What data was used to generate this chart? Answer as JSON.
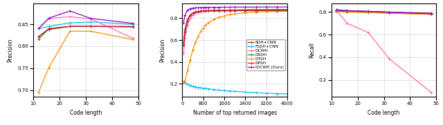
{
  "plot1": {
    "xlabel": "Code length",
    "ylabel": "Precision",
    "xlim": [
      10,
      50
    ],
    "ylim": [
      0.685,
      0.897
    ],
    "xticks": [
      10,
      20,
      30,
      40,
      50
    ],
    "yticks": [
      0.7,
      0.75,
      0.8,
      0.85
    ],
    "x": [
      12,
      16,
      24,
      32,
      48
    ],
    "series": [
      {
        "label": "SDH+CNN",
        "color": "#8B4513",
        "y": [
          0.822,
          0.838,
          0.845,
          0.845,
          0.845
        ]
      },
      {
        "label": "FSDH+CNN",
        "color": "#00BFFF",
        "y": [
          0.84,
          0.845,
          0.853,
          0.855,
          0.85
        ]
      },
      {
        "label": "DCWH",
        "color": "#FF69B4",
        "y": [
          0.84,
          0.863,
          0.867,
          0.862,
          0.818
        ]
      },
      {
        "label": "DSDH",
        "color": "#228B22",
        "y": [
          0.816,
          0.84,
          0.845,
          0.845,
          0.844
        ]
      },
      {
        "label": "DTSH",
        "color": "#FF8C00",
        "y": [
          0.695,
          0.752,
          0.834,
          0.834,
          0.815
        ]
      },
      {
        "label": "DPSH",
        "color": "#DC143C",
        "y": [
          0.822,
          0.84,
          0.845,
          0.845,
          0.844
        ]
      },
      {
        "label": "IDCWH (Ours)",
        "color": "#9400D3",
        "y": [
          0.84,
          0.864,
          0.88,
          0.863,
          0.852
        ]
      }
    ]
  },
  "plot2": {
    "xlabel": "Number of top returned images",
    "ylabel": "Precision",
    "xlim": [
      0,
      4000
    ],
    "ylim": [
      0.08,
      0.935
    ],
    "xticks": [
      0,
      800,
      1600,
      2400,
      3200,
      4000
    ],
    "yticks": [
      0.2,
      0.4,
      0.6,
      0.8
    ],
    "x": [
      50,
      100,
      200,
      300,
      400,
      500,
      600,
      700,
      800,
      900,
      1000,
      1200,
      1400,
      1600,
      1800,
      2000,
      2400,
      2800,
      3200,
      3600,
      4000
    ],
    "series": [
      {
        "label": "SDH+CNN",
        "color": "#8B4513",
        "y": [
          0.58,
          0.7,
          0.79,
          0.83,
          0.85,
          0.858,
          0.862,
          0.863,
          0.864,
          0.865,
          0.865,
          0.866,
          0.867,
          0.867,
          0.868,
          0.868,
          0.869,
          0.869,
          0.87,
          0.87,
          0.87
        ]
      },
      {
        "label": "FSDH+CNN",
        "color": "#00BFFF",
        "y": [
          0.22,
          0.21,
          0.195,
          0.185,
          0.178,
          0.172,
          0.167,
          0.163,
          0.16,
          0.156,
          0.153,
          0.148,
          0.143,
          0.138,
          0.134,
          0.131,
          0.124,
          0.118,
          0.113,
          0.11,
          0.107
        ]
      },
      {
        "label": "DCWH",
        "color": "#FF69B4",
        "y": [
          0.48,
          0.62,
          0.74,
          0.8,
          0.83,
          0.848,
          0.856,
          0.86,
          0.864,
          0.866,
          0.868,
          0.87,
          0.872,
          0.873,
          0.874,
          0.875,
          0.876,
          0.877,
          0.877,
          0.878,
          0.878
        ]
      },
      {
        "label": "DSDH",
        "color": "#228B22",
        "y": [
          0.56,
          0.68,
          0.78,
          0.83,
          0.848,
          0.857,
          0.862,
          0.865,
          0.867,
          0.869,
          0.87,
          0.872,
          0.873,
          0.874,
          0.875,
          0.875,
          0.876,
          0.877,
          0.877,
          0.878,
          0.878
        ]
      },
      {
        "label": "DTSH",
        "color": "#FF8C00",
        "y": [
          0.21,
          0.23,
          0.32,
          0.42,
          0.51,
          0.58,
          0.63,
          0.68,
          0.71,
          0.74,
          0.76,
          0.79,
          0.81,
          0.82,
          0.835,
          0.84,
          0.85,
          0.856,
          0.86,
          0.862,
          0.864
        ]
      },
      {
        "label": "DPSH",
        "color": "#DC143C",
        "y": [
          0.55,
          0.67,
          0.78,
          0.825,
          0.847,
          0.857,
          0.862,
          0.866,
          0.868,
          0.869,
          0.87,
          0.872,
          0.873,
          0.874,
          0.875,
          0.875,
          0.876,
          0.877,
          0.877,
          0.878,
          0.878
        ]
      },
      {
        "label": "IDCWH (Ours)",
        "color": "#9400D3",
        "y": [
          0.76,
          0.83,
          0.875,
          0.888,
          0.893,
          0.895,
          0.896,
          0.897,
          0.898,
          0.899,
          0.899,
          0.9,
          0.9,
          0.901,
          0.901,
          0.902,
          0.902,
          0.902,
          0.903,
          0.903,
          0.903
        ]
      }
    ]
  },
  "plot3": {
    "xlabel": "Code length",
    "ylabel": "Recall",
    "xlim": [
      10,
      50
    ],
    "ylim": [
      0.05,
      0.875
    ],
    "xticks": [
      10,
      20,
      30,
      40,
      50
    ],
    "yticks": [
      0.2,
      0.4,
      0.6,
      0.8
    ],
    "x": [
      12,
      16,
      24,
      32,
      48
    ],
    "series": [
      {
        "label": "SDH+CNN",
        "color": "#8B4513",
        "y": [
          0.812,
          0.808,
          0.803,
          0.796,
          0.787
        ]
      },
      {
        "label": "FSDH+CNN",
        "color": "#00BFFF",
        "y": [
          0.81,
          0.805,
          0.799,
          0.793,
          0.783
        ]
      },
      {
        "label": "DCWH",
        "color": "#FF69B4",
        "y": [
          0.812,
          0.7,
          0.62,
          0.388,
          0.09
        ]
      },
      {
        "label": "DSDH",
        "color": "#228B22",
        "y": [
          0.807,
          0.802,
          0.797,
          0.791,
          0.781
        ]
      },
      {
        "label": "DTSH",
        "color": "#FF8C00",
        "y": [
          0.803,
          0.799,
          0.795,
          0.789,
          0.779
        ]
      },
      {
        "label": "DPSH",
        "color": "#DC143C",
        "y": [
          0.82,
          0.812,
          0.806,
          0.799,
          0.789
        ]
      },
      {
        "label": "IDCWH (Ours)",
        "color": "#9400D3",
        "y": [
          0.82,
          0.812,
          0.806,
          0.799,
          0.783
        ]
      }
    ]
  },
  "legend": {
    "labels": [
      "SDH+CNN",
      "FSDH+CNN",
      "DCWH",
      "DSDH",
      "DTSH",
      "DPSH",
      "IDCWH (Ours)"
    ],
    "colors": [
      "#8B4513",
      "#00BFFF",
      "#FF69B4",
      "#228B22",
      "#FF8C00",
      "#DC143C",
      "#9400D3"
    ]
  }
}
